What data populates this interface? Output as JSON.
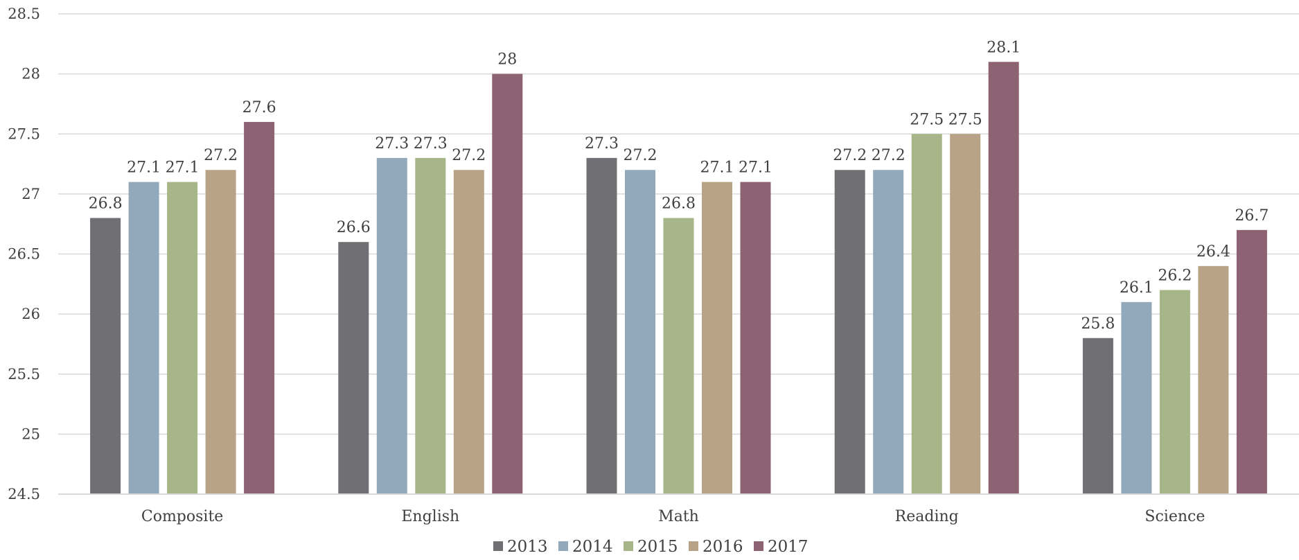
{
  "chart_data": {
    "type": "bar",
    "categories": [
      "Composite",
      "English",
      "Math",
      "Reading",
      "Science"
    ],
    "series": [
      {
        "name": "2013",
        "color": "#706f74",
        "values": [
          26.8,
          26.6,
          27.3,
          27.2,
          25.8
        ]
      },
      {
        "name": "2014",
        "color": "#91a9ba",
        "values": [
          27.1,
          27.3,
          27.2,
          27.2,
          26.1
        ]
      },
      {
        "name": "2015",
        "color": "#a6b688",
        "values": [
          27.1,
          27.3,
          26.8,
          27.5,
          26.2
        ]
      },
      {
        "name": "2016",
        "color": "#b8a386",
        "values": [
          27.2,
          27.2,
          27.1,
          27.5,
          26.4
        ]
      },
      {
        "name": "2017",
        "color": "#8d6272",
        "values": [
          27.6,
          28,
          27.1,
          28.1,
          26.7
        ]
      }
    ],
    "ylim": [
      24.5,
      28.5
    ],
    "yticks": [
      "24.5",
      "25",
      "25.5",
      "26",
      "26.5",
      "27",
      "27.5",
      "28",
      "28.5"
    ],
    "grid": true,
    "legend": "bottom",
    "title": "",
    "xlabel": "",
    "ylabel": ""
  }
}
